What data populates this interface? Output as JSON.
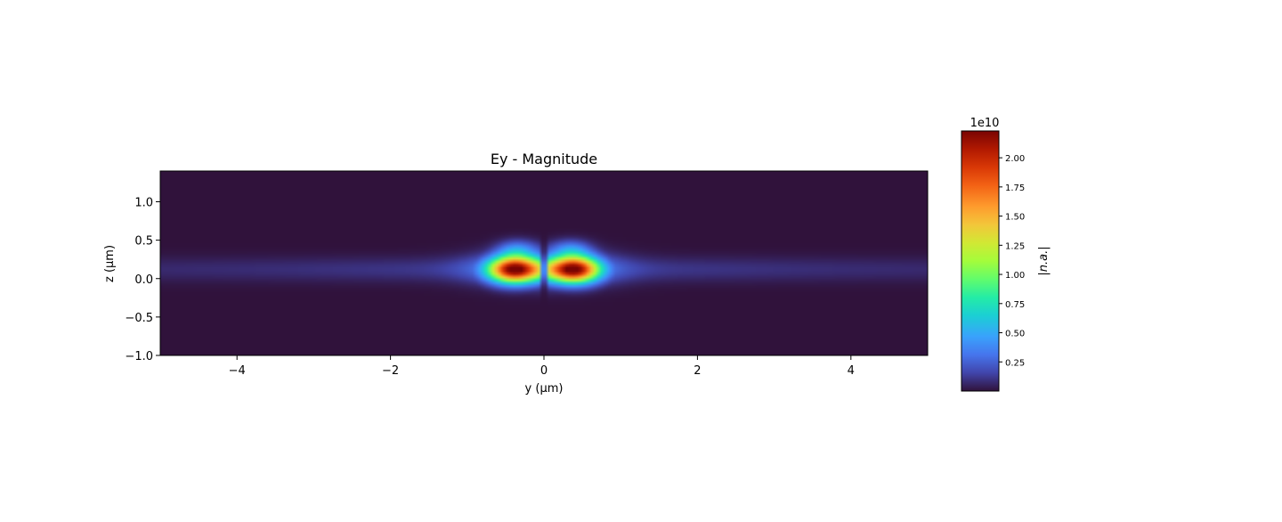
{
  "chart_data": {
    "type": "heatmap",
    "title": "Ey - Magnitude",
    "xlabel": "y (µm)",
    "ylabel": "z (µm)",
    "xlim": [
      -5,
      5
    ],
    "ylim": [
      -1,
      1.4
    ],
    "x_ticks": [
      -4,
      -2,
      0,
      2,
      4
    ],
    "x_tick_labels": [
      "−4",
      "−2",
      "0",
      "2",
      "4"
    ],
    "y_ticks": [
      -1.0,
      -0.5,
      0.0,
      0.5,
      1.0
    ],
    "y_tick_labels": [
      "−1.0",
      "−0.5",
      "0.0",
      "0.5",
      "1.0"
    ],
    "colormap": "turbo",
    "grid": false,
    "colorbar": {
      "label": "|n.a.|",
      "offset_text": "1e10",
      "range": [
        0.0,
        2.23
      ],
      "ticks": [
        0.25,
        0.5,
        0.75,
        1.0,
        1.25,
        1.5,
        1.75,
        2.0
      ],
      "tick_labels": [
        "0.25",
        "0.50",
        "0.75",
        "1.00",
        "1.25",
        "1.50",
        "1.75",
        "2.00"
      ]
    },
    "field": {
      "description_units": "|Ey| in units of 1e10",
      "max": 2.23,
      "lobes": [
        {
          "y_center": -0.38,
          "z_center": 0.12,
          "peak": 2.23
        },
        {
          "y_center": 0.38,
          "z_center": 0.12,
          "peak": 2.23
        }
      ],
      "null_at_y": 0.0,
      "guided_band_z": [
        -0.05,
        0.25
      ],
      "background_level": 0.0
    }
  }
}
